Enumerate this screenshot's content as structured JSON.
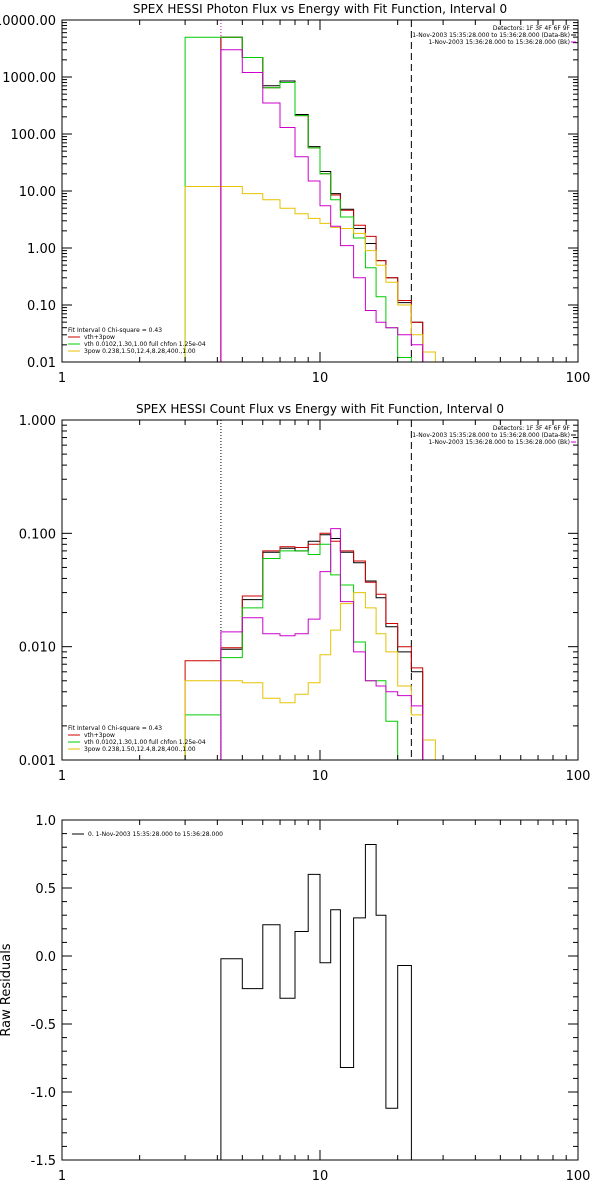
{
  "page": {
    "background": "#ffffff"
  },
  "chart_data": [
    {
      "type": "line",
      "title": "SPEX HESSI Photon Flux vs Energy with Fit Function, Interval 0",
      "xlabel": "",
      "ylabel": "",
      "xscale": "log",
      "yscale": "log",
      "xlim": [
        1,
        100
      ],
      "ylim": [
        0.01,
        10000
      ],
      "xtick_values": [
        1,
        10,
        100
      ],
      "xtick_labels": [
        "1",
        "10",
        "100"
      ],
      "ytick_values": [
        0.01,
        0.1,
        1,
        10,
        100,
        1000,
        10000
      ],
      "ytick_labels": [
        "0.01",
        "0.10",
        "1.00",
        "10.00",
        "100.00",
        "1000.00",
        "10000.00"
      ],
      "vlines": [
        {
          "x": 4.13,
          "style": "dotted",
          "color": "#cc00cc"
        },
        {
          "x": 22.6,
          "style": "dashed",
          "color": "#000000"
        }
      ],
      "info_text": [
        "Detectors: 1F 3F 4F 6F 9F",
        "1-Nov-2003 15:35:28.000 to 15:36:28.000 (Data-Bk)",
        "1-Nov-2003 15:36:28.000 to 15:36:28.000 (Bk)"
      ],
      "fit_text": "Fit Interval 0   Chi-square = 0.43",
      "legend": [
        {
          "label": "vth+3pow",
          "color": "#cc0000"
        },
        {
          "label": "vth 0.0102,1.30,1.00  full chfon 1.25e-04",
          "color": "#00cc00"
        },
        {
          "label": "3pow 0.238,1.50,12.4,8.28,400.,1.00",
          "color": "#e6c200"
        }
      ],
      "edges": [
        3.0,
        4.13,
        5.0,
        6.0,
        7.0,
        8.0,
        9.0,
        10.0,
        11.0,
        12.0,
        13.5,
        15.0,
        16.5,
        18.0,
        20.0,
        22.6,
        25.0,
        28.0
      ],
      "series": [
        {
          "name": "Data",
          "color": "#000000",
          "style": "step",
          "values": [
            null,
            5000,
            2200,
            700,
            850,
            220,
            60,
            22,
            9,
            4.8,
            2.2,
            1.2,
            0.6,
            0.3,
            0.11,
            0.05,
            null
          ]
        },
        {
          "name": "vth+3pow",
          "color": "#cc0000",
          "style": "step",
          "values": [
            null,
            5000,
            2200,
            650,
            800,
            210,
            57,
            20,
            8.5,
            4.6,
            2.5,
            1.6,
            0.6,
            0.3,
            0.12,
            0.05,
            null
          ]
        },
        {
          "name": "vth 0.0102,1.30,1.00  full chfon 1.25e-04",
          "color": "#00cc00",
          "style": "step",
          "values": [
            5000,
            5000,
            2200,
            650,
            800,
            210,
            57,
            20,
            7,
            3.5,
            1.5,
            0.45,
            0.14,
            0.04,
            0.012,
            0.005,
            null
          ]
        },
        {
          "name": "3pow 0.238,1.50,12.4,8.28,400.,1.00",
          "color": "#e6c200",
          "style": "step",
          "values": [
            12,
            12,
            9,
            7,
            5,
            4,
            3.3,
            2.7,
            2.3,
            2.2,
            1.8,
            0.9,
            0.5,
            0.25,
            0.1,
            0.03,
            0.015
          ]
        },
        {
          "name": "Bk",
          "color": "#cc00cc",
          "style": "step",
          "values": [
            null,
            3000,
            1200,
            350,
            130,
            40,
            15,
            5.5,
            2.4,
            1.1,
            0.3,
            0.08,
            0.05,
            0.04,
            0.03,
            0.02,
            null
          ]
        }
      ]
    },
    {
      "type": "line",
      "title": "SPEX HESSI Count Flux vs Energy with Fit Function, Interval 0",
      "xlabel": "",
      "ylabel": "",
      "xscale": "log",
      "yscale": "log",
      "xlim": [
        1,
        100
      ],
      "ylim": [
        0.001,
        1
      ],
      "xtick_values": [
        1,
        10,
        100
      ],
      "xtick_labels": [
        "1",
        "10",
        "100"
      ],
      "ytick_values": [
        0.001,
        0.01,
        0.1,
        1
      ],
      "ytick_labels": [
        "0.001",
        "0.010",
        "0.100",
        "1.000"
      ],
      "vlines": [
        {
          "x": 4.13,
          "style": "dotted",
          "color": "#000000"
        },
        {
          "x": 22.6,
          "style": "dashed",
          "color": "#000000"
        }
      ],
      "info_text": [
        "Detectors: 1F 3F 4F 6F 9F",
        "1-Nov-2003 15:35:28.000 to 15:36:28.000 (Data-Bk)",
        "1-Nov-2003 15:36:28.000 to 15:36:28.000 (Bk)"
      ],
      "fit_text": "Fit Interval 0   Chi-square = 0.43",
      "legend": [
        {
          "label": "vth+3pow",
          "color": "#cc0000"
        },
        {
          "label": "vth 0.0102,1.30,1.00  full chfon 1.25e-04",
          "color": "#00cc00"
        },
        {
          "label": "3pow 0.238,1.50,12.4,8.28,400.,1.00",
          "color": "#e6c200"
        }
      ],
      "edges": [
        3.0,
        4.13,
        5.0,
        6.0,
        7.0,
        8.0,
        9.0,
        10.0,
        11.0,
        12.0,
        13.5,
        15.0,
        16.5,
        18.0,
        20.0,
        22.6,
        25.0,
        28.0,
        30.0
      ],
      "series": [
        {
          "name": "Data",
          "color": "#000000",
          "style": "step",
          "values": [
            null,
            0.0095,
            0.026,
            0.068,
            0.074,
            0.07,
            0.085,
            0.097,
            0.09,
            0.068,
            0.055,
            0.038,
            0.027,
            0.015,
            0.009,
            0.006,
            null,
            null
          ]
        },
        {
          "name": "vth+3pow",
          "color": "#cc0000",
          "style": "step",
          "values": [
            0.0075,
            0.0098,
            0.028,
            0.07,
            0.076,
            0.075,
            0.08,
            0.1,
            0.085,
            0.07,
            0.057,
            0.037,
            0.029,
            0.016,
            0.01,
            0.0065,
            null,
            null
          ]
        },
        {
          "name": "vth 0.0102,1.30,1.00  full chfon 1.25e-04",
          "color": "#00cc00",
          "style": "step",
          "values": [
            0.0025,
            0.008,
            0.022,
            0.06,
            0.07,
            0.07,
            0.065,
            0.08,
            0.043,
            0.035,
            0.011,
            0.005,
            0.005,
            0.0022,
            0.001,
            0.0006,
            null,
            null
          ]
        },
        {
          "name": "3pow 0.238,1.50,12.4,8.28,400.,1.00",
          "color": "#e6c200",
          "style": "step",
          "values": [
            0.005,
            0.005,
            0.0048,
            0.0035,
            0.0032,
            0.0038,
            0.0048,
            0.0085,
            0.014,
            0.024,
            0.03,
            0.022,
            0.013,
            0.009,
            0.0045,
            0.0025,
            0.0015,
            0.001
          ]
        },
        {
          "name": "Bk",
          "color": "#cc00cc",
          "style": "step",
          "values": [
            null,
            0.0135,
            0.018,
            0.013,
            0.0125,
            0.013,
            0.0175,
            0.046,
            0.11,
            0.025,
            0.009,
            0.005,
            0.0045,
            0.004,
            0.0037,
            0.003,
            null,
            null
          ]
        }
      ]
    },
    {
      "type": "line",
      "title": "",
      "xlabel": "",
      "ylabel": "Raw Residuals",
      "xscale": "log",
      "yscale": "linear",
      "xlim": [
        1,
        100
      ],
      "ylim": [
        -1.5,
        1.0
      ],
      "xtick_values": [
        1,
        10,
        100
      ],
      "xtick_labels": [
        "1",
        "10",
        "100"
      ],
      "ytick_values": [
        -1.5,
        -1.0,
        -0.5,
        0.0,
        0.5,
        1.0
      ],
      "ytick_labels": [
        "-1.5",
        "-1.0",
        "-0.5",
        "0.0",
        "0.5",
        "1.0"
      ],
      "legend": [
        {
          "label": "0. 1-Nov-2003 15:35:28.000 to 15:36:28.000",
          "color": "#000000"
        }
      ],
      "edges": [
        4.13,
        5.0,
        6.0,
        7.0,
        8.0,
        9.0,
        10.0,
        11.0,
        12.0,
        13.5,
        15.0,
        16.5,
        18.0,
        20.0,
        22.6
      ],
      "series": [
        {
          "name": "0. 1-Nov-2003 15:35:28.000 to 15:36:28.000",
          "color": "#000000",
          "style": "step",
          "values": [
            -0.02,
            -0.24,
            0.23,
            -0.31,
            0.18,
            0.6,
            -0.05,
            0.34,
            -0.82,
            0.28,
            0.82,
            0.3,
            -1.12,
            -0.07
          ]
        }
      ]
    }
  ]
}
